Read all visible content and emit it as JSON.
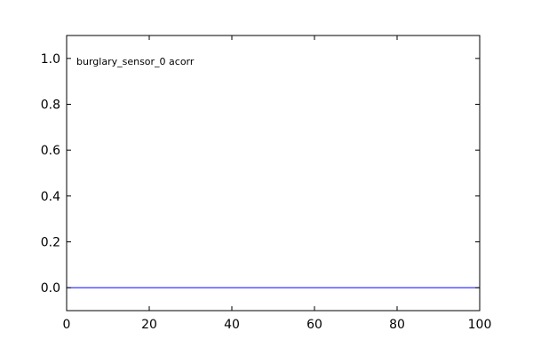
{
  "chart_data": {
    "type": "line",
    "title": "",
    "xlabel": "",
    "ylabel": "",
    "xlim": [
      0,
      100
    ],
    "ylim": [
      -0.1,
      1.1
    ],
    "xticks": [
      0,
      20,
      40,
      60,
      80,
      100
    ],
    "yticks": [
      0.0,
      0.2,
      0.4,
      0.6,
      0.8,
      1.0
    ],
    "xtick_labels": [
      "0",
      "20",
      "40",
      "60",
      "80",
      "100"
    ],
    "ytick_labels": [
      "0.0",
      "0.2",
      "0.4",
      "0.6",
      "0.8",
      "1.0"
    ],
    "grid": false,
    "annotation": "burglary_sensor_0 acorr",
    "series": [
      {
        "color": "#0000ff",
        "x": [
          0,
          100
        ],
        "y": [
          0.0,
          0.0
        ]
      }
    ]
  }
}
